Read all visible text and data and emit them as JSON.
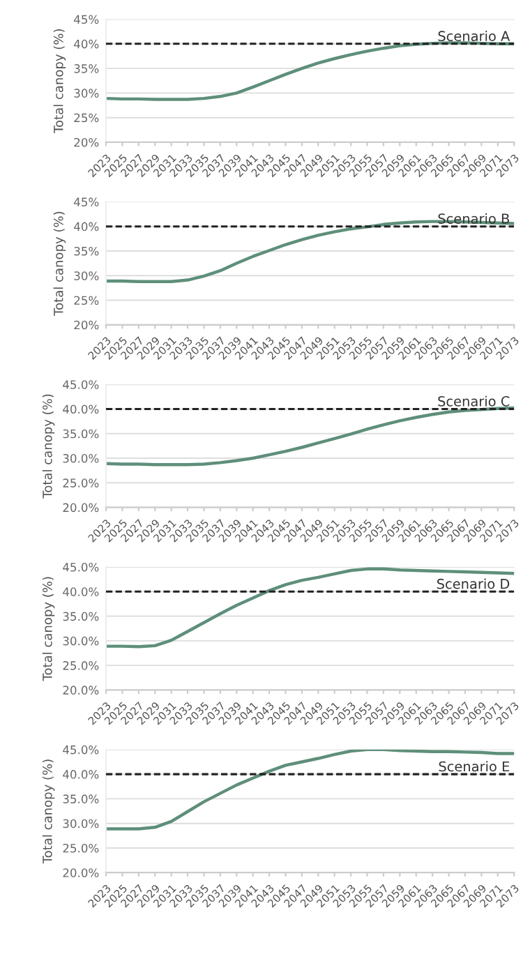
{
  "chart_data": [
    {
      "type": "line",
      "ylabel": "Total canopy (%)",
      "x": [
        2023,
        2025,
        2027,
        2029,
        2031,
        2033,
        2035,
        2037,
        2039,
        2041,
        2043,
        2045,
        2047,
        2049,
        2051,
        2053,
        2055,
        2057,
        2059,
        2061,
        2063,
        2065,
        2067,
        2069,
        2071,
        2073
      ],
      "xlim": [
        2023,
        2073
      ],
      "xticks": [
        2023,
        2025,
        2027,
        2029,
        2031,
        2033,
        2035,
        2037,
        2039,
        2041,
        2043,
        2045,
        2047,
        2049,
        2051,
        2053,
        2055,
        2057,
        2059,
        2061,
        2063,
        2065,
        2067,
        2069,
        2071,
        2073
      ],
      "ylim": [
        20,
        45
      ],
      "yticks": [
        {
          "value": 20,
          "label": "20%"
        },
        {
          "value": 25,
          "label": "25%"
        },
        {
          "value": 30,
          "label": "30%"
        },
        {
          "value": 35,
          "label": "35%"
        },
        {
          "value": 40,
          "label": "40%"
        },
        {
          "value": 45,
          "label": "45%"
        }
      ],
      "grid": "y",
      "series": [
        {
          "color": "#5e8f7a",
          "values": [
            28.9,
            28.8,
            28.8,
            28.7,
            28.7,
            28.7,
            28.9,
            29.3,
            30.0,
            31.2,
            32.5,
            33.8,
            35.0,
            36.1,
            37.0,
            37.8,
            38.5,
            39.1,
            39.6,
            39.9,
            40.1,
            40.2,
            40.2,
            40.1,
            40.0,
            40.0
          ]
        }
      ],
      "ref_lines": [
        {
          "axis": "y",
          "value": 40,
          "label": "Scenario A",
          "color": "#222222",
          "line_style": "dashed"
        }
      ]
    },
    {
      "type": "line",
      "ylabel": "Total canopy (%)",
      "x": [
        2023,
        2025,
        2027,
        2029,
        2031,
        2033,
        2035,
        2037,
        2039,
        2041,
        2043,
        2045,
        2047,
        2049,
        2051,
        2053,
        2055,
        2057,
        2059,
        2061,
        2063,
        2065,
        2067,
        2069,
        2071,
        2073
      ],
      "xlim": [
        2023,
        2073
      ],
      "xticks": [
        2023,
        2025,
        2027,
        2029,
        2031,
        2033,
        2035,
        2037,
        2039,
        2041,
        2043,
        2045,
        2047,
        2049,
        2051,
        2053,
        2055,
        2057,
        2059,
        2061,
        2063,
        2065,
        2067,
        2069,
        2071,
        2073
      ],
      "ylim": [
        20,
        45
      ],
      "yticks": [
        {
          "value": 20,
          "label": "20%"
        },
        {
          "value": 25,
          "label": "25%"
        },
        {
          "value": 30,
          "label": "30%"
        },
        {
          "value": 35,
          "label": "35%"
        },
        {
          "value": 40,
          "label": "40%"
        },
        {
          "value": 45,
          "label": "45%"
        }
      ],
      "grid": "y",
      "series": [
        {
          "color": "#5e8f7a",
          "values": [
            28.9,
            28.9,
            28.8,
            28.8,
            28.8,
            29.1,
            29.9,
            31.0,
            32.5,
            33.9,
            35.1,
            36.3,
            37.3,
            38.2,
            38.9,
            39.5,
            39.9,
            40.4,
            40.7,
            40.9,
            41.0,
            41.0,
            40.9,
            40.8,
            40.7,
            40.6
          ]
        }
      ],
      "ref_lines": [
        {
          "axis": "y",
          "value": 40,
          "label": "Scenario B",
          "color": "#222222",
          "line_style": "dashed"
        }
      ]
    },
    {
      "type": "line",
      "ylabel": "Total canopy (%)",
      "x": [
        2023,
        2025,
        2027,
        2029,
        2031,
        2033,
        2035,
        2037,
        2039,
        2041,
        2043,
        2045,
        2047,
        2049,
        2051,
        2053,
        2055,
        2057,
        2059,
        2061,
        2063,
        2065,
        2067,
        2069,
        2071,
        2073
      ],
      "xlim": [
        2023,
        2073
      ],
      "xticks": [
        2023,
        2025,
        2027,
        2029,
        2031,
        2033,
        2035,
        2037,
        2039,
        2041,
        2043,
        2045,
        2047,
        2049,
        2051,
        2053,
        2055,
        2057,
        2059,
        2061,
        2063,
        2065,
        2067,
        2069,
        2071,
        2073
      ],
      "ylim": [
        20,
        45
      ],
      "yticks": [
        {
          "value": 20,
          "label": "20.0%"
        },
        {
          "value": 25,
          "label": "25.0%"
        },
        {
          "value": 30,
          "label": "30.0%"
        },
        {
          "value": 35,
          "label": "35.0%"
        },
        {
          "value": 40,
          "label": "40.0%"
        },
        {
          "value": 45,
          "label": "45.0%"
        }
      ],
      "grid": "y",
      "series": [
        {
          "color": "#5e8f7a",
          "values": [
            28.9,
            28.8,
            28.8,
            28.7,
            28.7,
            28.7,
            28.8,
            29.1,
            29.5,
            30.0,
            30.7,
            31.4,
            32.2,
            33.1,
            34.0,
            34.9,
            35.9,
            36.8,
            37.6,
            38.3,
            38.9,
            39.4,
            39.7,
            39.9,
            40.1,
            40.2
          ]
        }
      ],
      "ref_lines": [
        {
          "axis": "y",
          "value": 40,
          "label": "Scenario C",
          "color": "#222222",
          "line_style": "dashed"
        }
      ]
    },
    {
      "type": "line",
      "ylabel": "Total canopy (%)",
      "x": [
        2023,
        2025,
        2027,
        2029,
        2031,
        2033,
        2035,
        2037,
        2039,
        2041,
        2043,
        2045,
        2047,
        2049,
        2051,
        2053,
        2055,
        2057,
        2059,
        2061,
        2063,
        2065,
        2067,
        2069,
        2071,
        2073
      ],
      "xlim": [
        2023,
        2073
      ],
      "xticks": [
        2023,
        2025,
        2027,
        2029,
        2031,
        2033,
        2035,
        2037,
        2039,
        2041,
        2043,
        2045,
        2047,
        2049,
        2051,
        2053,
        2055,
        2057,
        2059,
        2061,
        2063,
        2065,
        2067,
        2069,
        2071,
        2073
      ],
      "ylim": [
        20,
        45
      ],
      "yticks": [
        {
          "value": 20,
          "label": "20.0%"
        },
        {
          "value": 25,
          "label": "25.0%"
        },
        {
          "value": 30,
          "label": "30.0%"
        },
        {
          "value": 35,
          "label": "35.0%"
        },
        {
          "value": 40,
          "label": "40.0%"
        },
        {
          "value": 45,
          "label": "45.0%"
        }
      ],
      "grid": "y",
      "series": [
        {
          "color": "#5e8f7a",
          "values": [
            28.9,
            28.9,
            28.8,
            29.0,
            30.1,
            31.9,
            33.7,
            35.5,
            37.2,
            38.7,
            40.2,
            41.4,
            42.3,
            42.9,
            43.6,
            44.3,
            44.6,
            44.6,
            44.4,
            44.3,
            44.2,
            44.1,
            44.0,
            43.9,
            43.8,
            43.7
          ]
        }
      ],
      "ref_lines": [
        {
          "axis": "y",
          "value": 40,
          "label": "Scenario D",
          "color": "#222222",
          "line_style": "dashed"
        }
      ]
    },
    {
      "type": "line",
      "ylabel": "Total canopy (%)",
      "x": [
        2023,
        2025,
        2027,
        2029,
        2031,
        2033,
        2035,
        2037,
        2039,
        2041,
        2043,
        2045,
        2047,
        2049,
        2051,
        2053,
        2055,
        2057,
        2059,
        2061,
        2063,
        2065,
        2067,
        2069,
        2071,
        2073
      ],
      "xlim": [
        2023,
        2073
      ],
      "xticks": [
        2023,
        2025,
        2027,
        2029,
        2031,
        2033,
        2035,
        2037,
        2039,
        2041,
        2043,
        2045,
        2047,
        2049,
        2051,
        2053,
        2055,
        2057,
        2059,
        2061,
        2063,
        2065,
        2067,
        2069,
        2071,
        2073
      ],
      "ylim": [
        20,
        45
      ],
      "yticks": [
        {
          "value": 20,
          "label": "20.0%"
        },
        {
          "value": 25,
          "label": "25.0%"
        },
        {
          "value": 30,
          "label": "30.0%"
        },
        {
          "value": 35,
          "label": "35.0%"
        },
        {
          "value": 40,
          "label": "40.0%"
        },
        {
          "value": 45,
          "label": "45.0%"
        }
      ],
      "grid": "y",
      "series": [
        {
          "color": "#5e8f7a",
          "values": [
            28.9,
            28.9,
            28.9,
            29.2,
            30.4,
            32.4,
            34.4,
            36.1,
            37.8,
            39.2,
            40.6,
            41.8,
            42.5,
            43.2,
            44.0,
            44.7,
            45.0,
            45.0,
            44.8,
            44.7,
            44.6,
            44.6,
            44.5,
            44.4,
            44.2,
            44.2
          ]
        }
      ],
      "ref_lines": [
        {
          "axis": "y",
          "value": 40,
          "label": "Scenario E",
          "color": "#222222",
          "line_style": "dashed"
        }
      ]
    }
  ]
}
